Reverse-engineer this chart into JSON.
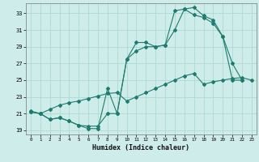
{
  "xlabel": "Humidex (Indice chaleur)",
  "background_color": "#ceecea",
  "grid_color": "#aed8d4",
  "line_color": "#1e7b6e",
  "ylim": [
    18.5,
    34.2
  ],
  "xlim": [
    -0.5,
    23.5
  ],
  "yticks": [
    19,
    21,
    23,
    25,
    27,
    29,
    31,
    33
  ],
  "xticks": [
    0,
    1,
    2,
    3,
    4,
    5,
    6,
    7,
    8,
    9,
    10,
    11,
    12,
    13,
    14,
    15,
    16,
    17,
    18,
    19,
    20,
    21,
    22,
    23
  ],
  "line1_x": [
    0,
    1,
    2,
    3,
    4,
    5,
    6,
    7,
    8,
    9,
    10,
    11,
    12,
    13,
    14,
    15,
    16,
    17,
    18,
    19,
    20,
    21,
    22
  ],
  "line1_y": [
    21.2,
    21.0,
    20.3,
    20.5,
    20.1,
    19.6,
    19.2,
    19.2,
    24.0,
    21.0,
    27.5,
    29.5,
    29.5,
    29.0,
    29.2,
    33.3,
    33.5,
    33.7,
    32.7,
    32.2,
    30.2,
    27.0,
    25.0
  ],
  "line2_x": [
    0,
    1,
    2,
    3,
    4,
    5,
    6,
    7,
    8,
    9,
    10,
    11,
    12,
    13,
    14,
    15,
    16,
    17,
    18,
    19,
    20,
    21,
    22
  ],
  "line2_y": [
    21.2,
    21.0,
    20.3,
    20.5,
    20.1,
    19.6,
    19.5,
    19.5,
    21.0,
    21.0,
    27.5,
    28.5,
    29.0,
    29.0,
    29.2,
    31.0,
    33.5,
    32.8,
    32.5,
    31.8,
    30.2,
    25.0,
    25.0
  ],
  "line3_x": [
    0,
    1,
    2,
    3,
    4,
    5,
    6,
    7,
    8,
    9,
    10,
    11,
    12,
    13,
    14,
    15,
    16,
    17,
    18,
    19,
    20,
    21,
    22,
    23
  ],
  "line3_y": [
    21.3,
    21.0,
    21.5,
    22.0,
    22.3,
    22.5,
    22.8,
    23.1,
    23.4,
    23.5,
    22.5,
    23.0,
    23.5,
    24.0,
    24.5,
    25.0,
    25.5,
    25.8,
    24.5,
    24.8,
    25.0,
    25.2,
    25.3,
    25.0
  ]
}
